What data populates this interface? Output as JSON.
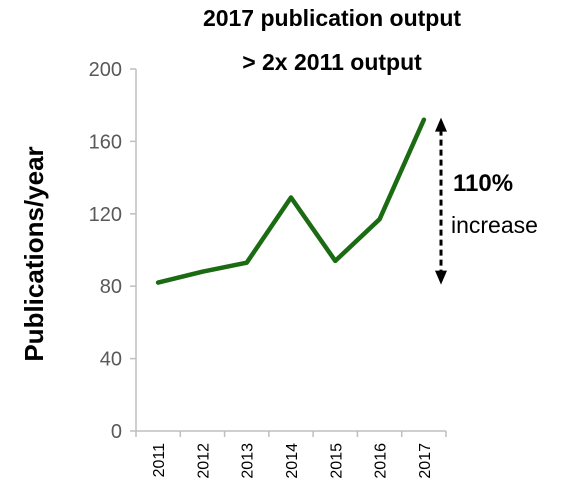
{
  "chart_data": {
    "type": "line",
    "title_lines": [
      "2017 publication output",
      "> 2x 2011 output"
    ],
    "xlabel": "",
    "ylabel": "Publications/year",
    "categories": [
      "2011",
      "2012",
      "2013",
      "2014",
      "2015",
      "2016",
      "2017"
    ],
    "series": [
      {
        "values": [
          82,
          88,
          93,
          129,
          94,
          117,
          172
        ],
        "color": "#1a6b12"
      }
    ],
    "ylim": [
      0,
      200
    ],
    "yticks": [
      "0",
      "40",
      "80",
      "120",
      "160",
      "200"
    ],
    "grid": false,
    "legend": "none",
    "annotation": {
      "strong": "110%",
      "text": "increase",
      "arrow_from": 82,
      "arrow_to": 172
    }
  }
}
